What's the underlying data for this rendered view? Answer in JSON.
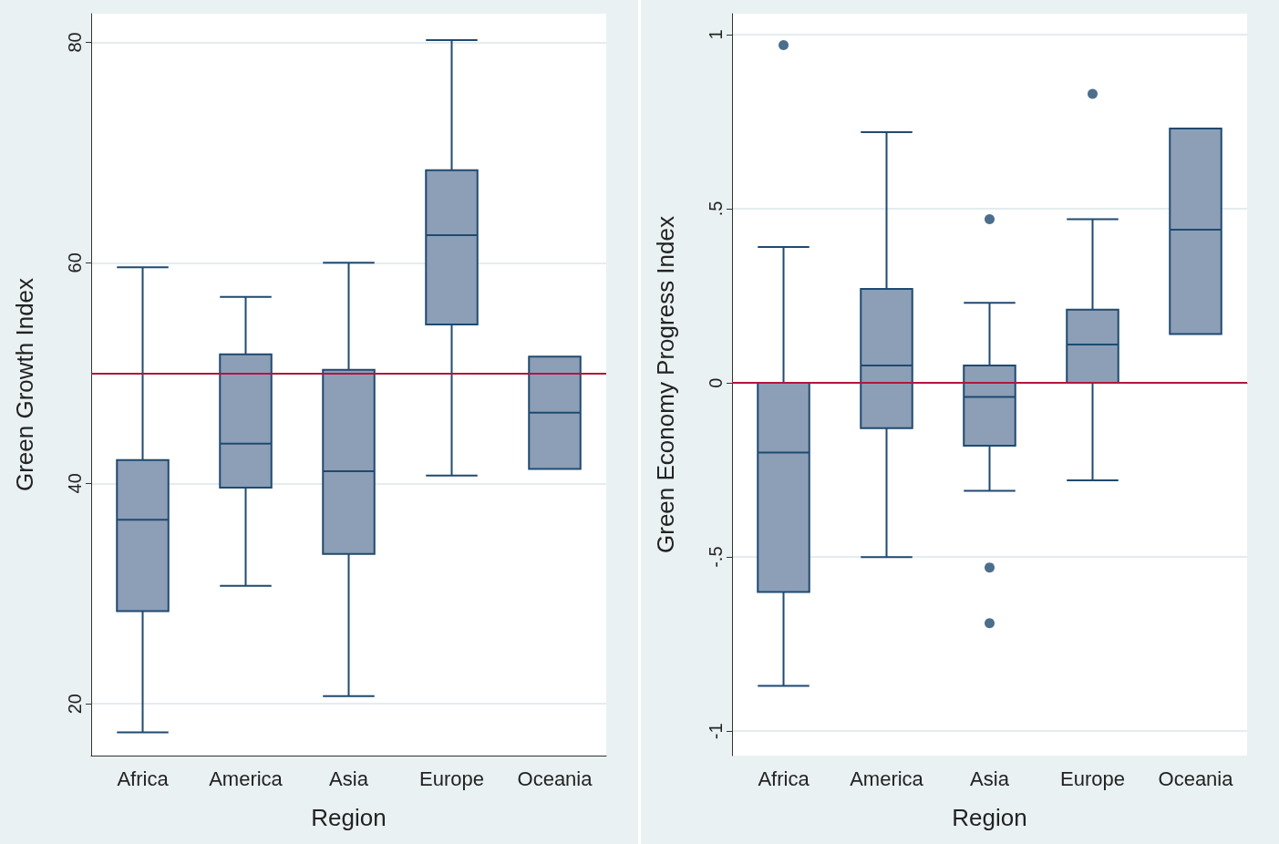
{
  "chart_data": [
    {
      "type": "box",
      "xlabel": "Region",
      "ylabel": "Green Growth Index",
      "categories": [
        "Africa",
        "America",
        "Asia",
        "Europe",
        "Oceania"
      ],
      "color": "#8c9fb6",
      "ylim": [
        15.3,
        82.6
      ],
      "yticks": [
        20,
        40,
        60,
        80
      ],
      "grid": "y",
      "boxes": [
        {
          "low": 17.4,
          "q1": 28.4,
          "median": 36.7,
          "q3": 42.1,
          "high": 59.6
        },
        {
          "low": 30.7,
          "q1": 39.6,
          "median": 43.6,
          "q3": 51.7,
          "high": 56.9
        },
        {
          "low": 20.7,
          "q1": 33.6,
          "median": 41.1,
          "q3": 50.3,
          "high": 60.0
        },
        {
          "low": 40.7,
          "q1": 54.4,
          "median": 62.5,
          "q3": 68.4,
          "high": 80.2
        },
        {
          "low": 41.3,
          "q1": 41.3,
          "median": 46.4,
          "q3": 51.5,
          "high": 51.5
        }
      ],
      "ref_lines": [
        {
          "axis": "y",
          "value": 50,
          "label": null,
          "color": "#b0173f"
        }
      ]
    },
    {
      "type": "box",
      "xlabel": "Region",
      "ylabel": "Green Economy Progress Index",
      "categories": [
        "Africa",
        "America",
        "Asia",
        "Europe",
        "Oceania"
      ],
      "color": "#8c9fb6",
      "ylim": [
        -1.07,
        1.06
      ],
      "yticks": [
        {
          "value": -1,
          "label": "-1"
        },
        {
          "value": -0.5,
          "label": "-.5"
        },
        0,
        {
          "value": 0.5,
          "label": ".5"
        },
        1
      ],
      "grid": "y",
      "boxes": [
        {
          "low": -0.87,
          "q1": -0.6,
          "median": -0.2,
          "q3": 0.0,
          "high": 0.39,
          "outliers": [
            0.97
          ]
        },
        {
          "low": -0.5,
          "q1": -0.13,
          "median": 0.05,
          "q3": 0.27,
          "high": 0.72
        },
        {
          "low": -0.31,
          "q1": -0.18,
          "median": -0.04,
          "q3": 0.05,
          "high": 0.23,
          "outliers": [
            0.47,
            -0.53,
            -0.69
          ]
        },
        {
          "low": -0.28,
          "q1": 0.0,
          "median": 0.11,
          "q3": 0.21,
          "high": 0.47,
          "outliers": [
            0.83
          ]
        },
        {
          "low": 0.14,
          "q1": 0.14,
          "median": 0.44,
          "q3": 0.73,
          "high": 0.73
        }
      ],
      "ref_lines": [
        {
          "axis": "y",
          "value": 0,
          "label": null,
          "color": "#b0173f"
        }
      ]
    }
  ]
}
